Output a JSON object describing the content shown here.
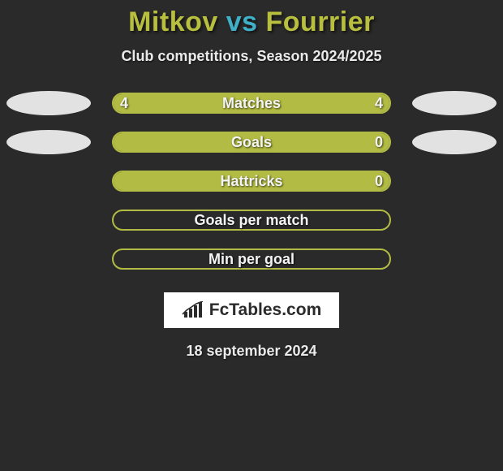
{
  "background_color": "#2a2a2a",
  "title": {
    "player1": "Mitkov",
    "vs": " vs ",
    "player2": "Fourrier",
    "p1_color": "#b8be3e",
    "vs_color": "#3fb0c8",
    "p2_color": "#b8be3e",
    "fontsize": 34
  },
  "subtitle": {
    "text": "Club competitions, Season 2024/2025",
    "color": "#eaeaea",
    "fontsize": 18
  },
  "bars": {
    "outer_width": 344,
    "height": 26,
    "border_radius": 13,
    "rows": [
      {
        "label": "Matches",
        "left_value": "4",
        "right_value": "4",
        "left_fill_pct": 50,
        "right_fill_pct": 50,
        "left_fill_color": "#b2bb43",
        "right_fill_color": "#b2bb43",
        "border_color": "#b2bb43",
        "left_ellipse_color": "#e2e2e2",
        "right_ellipse_color": "#e2e2e2"
      },
      {
        "label": "Goals",
        "left_value": "",
        "right_value": "0",
        "left_fill_pct": 100,
        "right_fill_pct": 0,
        "left_fill_color": "#b2bb43",
        "right_fill_color": "#b2bb43",
        "border_color": "#b2bb43",
        "left_ellipse_color": "#e2e2e2",
        "right_ellipse_color": "#e2e2e2"
      },
      {
        "label": "Hattricks",
        "left_value": "",
        "right_value": "0",
        "left_fill_pct": 100,
        "right_fill_pct": 0,
        "left_fill_color": "#b2bb43",
        "right_fill_color": "#b2bb43",
        "border_color": "#b2bb43",
        "left_ellipse_color": "",
        "right_ellipse_color": ""
      },
      {
        "label": "Goals per match",
        "left_value": "",
        "right_value": "",
        "left_fill_pct": 0,
        "right_fill_pct": 0,
        "left_fill_color": "#b2bb43",
        "right_fill_color": "#b2bb43",
        "border_color": "#b2bb43",
        "left_ellipse_color": "",
        "right_ellipse_color": ""
      },
      {
        "label": "Min per goal",
        "left_value": "",
        "right_value": "",
        "left_fill_pct": 0,
        "right_fill_pct": 0,
        "left_fill_color": "#b2bb43",
        "right_fill_color": "#b2bb43",
        "border_color": "#b2bb43",
        "left_ellipse_color": "",
        "right_ellipse_color": ""
      }
    ],
    "label_color": "#f4f4f4",
    "label_fontsize": 18
  },
  "logo": {
    "text": "FcTables.com",
    "box_bg": "#ffffff",
    "text_color": "#2b2b2b",
    "icon_color": "#2b2b2b"
  },
  "date": {
    "text": "18 september 2024",
    "color": "#eaeaea",
    "fontsize": 18
  }
}
